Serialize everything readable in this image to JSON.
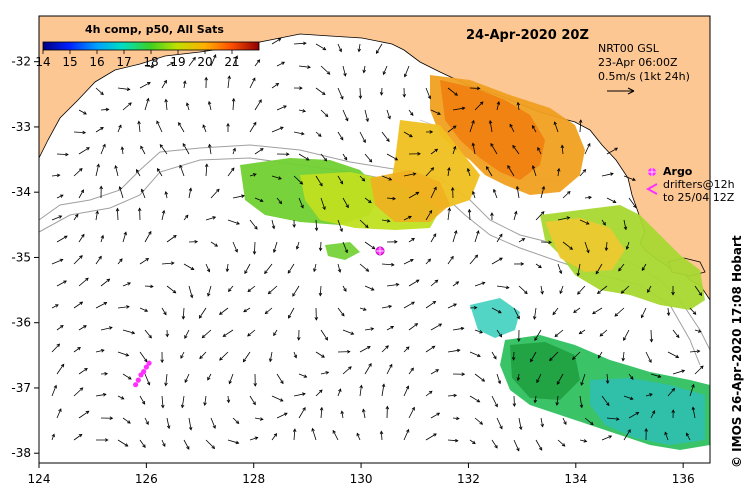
{
  "map": {
    "title": "24-Apr-2020 20Z",
    "colorbar": {
      "title": "4h comp, p50, All Sats",
      "tick_labels": [
        "14",
        "15",
        "16",
        "17",
        "18",
        "19",
        "20",
        "21"
      ],
      "tick_values": [
        14,
        15,
        16,
        17,
        18,
        19,
        20,
        21
      ],
      "range": [
        14,
        22
      ]
    },
    "current_info": {
      "line1": "NRT00 GSL",
      "line2": "23-Apr 06:00Z",
      "line3": "0.5m/s (1kt 24h)"
    },
    "legend": {
      "argo_label": "Argo",
      "drifters_line1": "drifters@12h",
      "drifters_line2": "to 25/04 12Z"
    },
    "credit": "© IMOS 26-Apr-2020 17:08 Hobart",
    "axes": {
      "x_ticks": [
        {
          "value": 124,
          "label": "124"
        },
        {
          "value": 126,
          "label": "126"
        },
        {
          "value": 128,
          "label": "128"
        },
        {
          "value": 130,
          "label": "130"
        },
        {
          "value": 132,
          "label": "132"
        },
        {
          "value": 134,
          "label": "134"
        },
        {
          "value": 136,
          "label": "136"
        }
      ],
      "y_ticks": [
        {
          "value": -32,
          "label": "-32"
        },
        {
          "value": -33,
          "label": "-33"
        },
        {
          "value": -34,
          "label": "-34"
        },
        {
          "value": -35,
          "label": "-35"
        },
        {
          "value": -36,
          "label": "-36"
        },
        {
          "value": -37,
          "label": "-37"
        },
        {
          "value": -38,
          "label": "-38"
        }
      ],
      "lon_range": [
        124,
        136.5
      ],
      "lat_range": [
        -38.15,
        -31.3
      ]
    },
    "argo_floats": [
      {
        "lon": 130.35,
        "lat": -34.87
      }
    ],
    "drifter_track": [
      {
        "lon": 125.8,
        "lat": -36.95
      },
      {
        "lon": 125.85,
        "lat": -36.88
      },
      {
        "lon": 125.9,
        "lat": -36.8
      },
      {
        "lon": 125.95,
        "lat": -36.75
      },
      {
        "lon": 126.0,
        "lat": -36.68
      },
      {
        "lon": 126.05,
        "lat": -36.62
      }
    ],
    "colors": {
      "land": "#fdc794",
      "ocean": "#ffffff",
      "argo": "#ff30ff",
      "drifter": "#ff30ff",
      "bathymetry": "#a0a0a0"
    }
  }
}
